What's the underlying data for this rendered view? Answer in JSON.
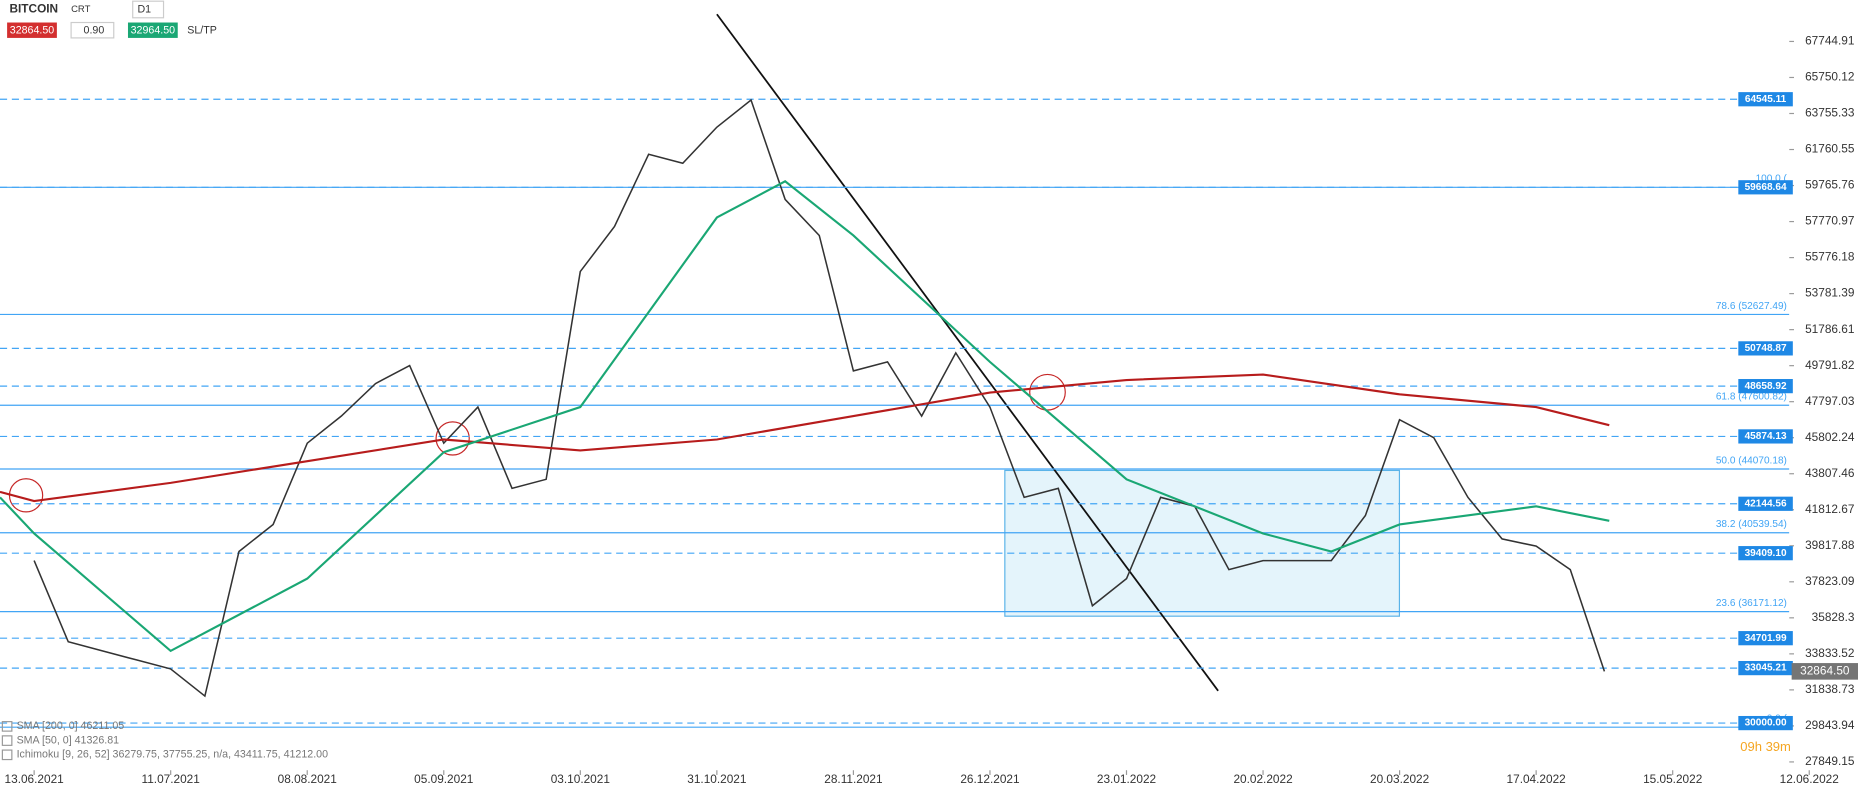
{
  "toolbar": {
    "symbol": "BITCOIN",
    "kind": "CRT",
    "interval": "D1",
    "sell": "32864.50",
    "volume": "0.90",
    "buy": "32964.50",
    "sltp": "SL/TP"
  },
  "chart_data": {
    "type": "line",
    "xlim": [
      "06.06.2021",
      "22.06.2022"
    ],
    "xticks": [
      "13.06.2021",
      "11.07.2021",
      "08.08.2021",
      "05.09.2021",
      "03.10.2021",
      "31.10.2021",
      "28.11.2021",
      "26.12.2021",
      "23.01.2022",
      "20.02.2022",
      "20.03.2022",
      "17.04.2022",
      "15.05.2022",
      "12.06.2022"
    ],
    "ylim": [
      27390,
      70040
    ],
    "yticks": [
      {
        "value": 67744.91,
        "label": "67744.91"
      },
      65750.12,
      63755.33,
      61760.55,
      59765.76,
      57770.97,
      55776.18,
      53781.39,
      51786.61,
      49791.82,
      47797.03,
      45802.24,
      43807.46,
      41812.67,
      39817.88,
      37823.09,
      35828.3,
      33833.52,
      31838.73,
      29843.94,
      27849.15
    ],
    "series": [
      {
        "name": "BITCOIN",
        "color": "#333333",
        "x": [
          "13.06.2021",
          "20.06.2021",
          "27.06.2021",
          "04.07.2021",
          "11.07.2021",
          "18.07.2021",
          "25.07.2021",
          "01.08.2021",
          "08.08.2021",
          "15.08.2021",
          "22.08.2021",
          "29.08.2021",
          "05.09.2021",
          "12.09.2021",
          "19.09.2021",
          "26.09.2021",
          "03.10.2021",
          "10.10.2021",
          "17.10.2021",
          "24.10.2021",
          "31.10.2021",
          "07.11.2021",
          "14.11.2021",
          "21.11.2021",
          "28.11.2021",
          "05.12.2021",
          "12.12.2021",
          "19.12.2021",
          "26.12.2021",
          "02.01.2022",
          "09.01.2022",
          "16.01.2022",
          "23.01.2022",
          "30.01.2022",
          "06.02.2022",
          "13.02.2022",
          "20.02.2022",
          "27.02.2022",
          "06.03.2022",
          "13.03.2022",
          "20.03.2022",
          "27.03.2022",
          "03.04.2022",
          "10.04.2022",
          "17.04.2022",
          "24.04.2022",
          "01.05.2022"
        ],
        "values": [
          39000,
          34500,
          34000,
          33500,
          33000,
          31500,
          39500,
          41000,
          45500,
          47000,
          48800,
          49800,
          45500,
          47500,
          43000,
          43500,
          55000,
          57500,
          61500,
          61000,
          63000,
          64500,
          59000,
          57000,
          49500,
          50000,
          47000,
          50500,
          47500,
          42500,
          43000,
          36500,
          38000,
          42500,
          42000,
          38500,
          39000,
          39000,
          39000,
          41500,
          46800,
          45800,
          42500,
          40200,
          39800,
          38500,
          32864.5
        ]
      },
      {
        "name": "SMA [200, 0] 46211.05",
        "color": "#b71c1c",
        "x": [
          "06.06.2021",
          "13.06.2021",
          "11.07.2021",
          "08.08.2021",
          "05.09.2021",
          "03.10.2021",
          "31.10.2021",
          "28.11.2021",
          "26.12.2021",
          "23.01.2022",
          "20.02.2022",
          "20.03.2022",
          "17.04.2022",
          "02.05.2022"
        ],
        "values": [
          42800,
          42300,
          43300,
          44500,
          45700,
          45100,
          45700,
          47000,
          48300,
          49000,
          49300,
          48200,
          47500,
          46500
        ]
      },
      {
        "name": "SMA [50, 0] 41326.81",
        "color": "#1aa774",
        "x": [
          "06.06.2021",
          "13.06.2021",
          "11.07.2021",
          "08.08.2021",
          "05.09.2021",
          "03.10.2021",
          "31.10.2021",
          "14.11.2021",
          "28.11.2021",
          "26.12.2021",
          "23.01.2022",
          "20.02.2022",
          "06.03.2022",
          "20.03.2022",
          "17.04.2022",
          "02.05.2022"
        ],
        "values": [
          42500,
          40500,
          34000,
          38000,
          45000,
          47500,
          58000,
          60000,
          57000,
          50000,
          43500,
          40500,
          39500,
          41000,
          42000,
          41200
        ]
      }
    ],
    "indicator": "Ichimoku [9, 26, 52] 36279.75, 37755.25, n/a, 43411.75, 41212.00",
    "levels": [
      64545.11,
      59668.64,
      50748.87,
      48658.92,
      45874.13,
      42144.56,
      39409.1,
      34701.99,
      33045.21,
      30000.0
    ],
    "level_labels": [
      "64545.11",
      "59668.64",
      "50748.87",
      "48658.92",
      "45874.13",
      "42144.56",
      "39409.10",
      "34701.99",
      "33045.21",
      "30000.00"
    ],
    "fib": [
      {
        "value": 59668.64,
        "label": "100.0 ("
      },
      {
        "value": 52627.49,
        "label": "78.6 (52627.49)"
      },
      {
        "value": 47600.82,
        "label": "61.8 (47600.82)"
      },
      {
        "value": 44070.18,
        "label": "50.0 (44070.18)"
      },
      {
        "value": 40539.54,
        "label": "38.2 (40539.54)"
      },
      {
        "value": 36171.12,
        "label": "23.6 (36171.12)"
      },
      {
        "value": 29772.0,
        "label": "0.0 ("
      }
    ],
    "last_price": {
      "value": 32864.5,
      "label": "32864.50"
    },
    "timer": "09h 39m"
  }
}
